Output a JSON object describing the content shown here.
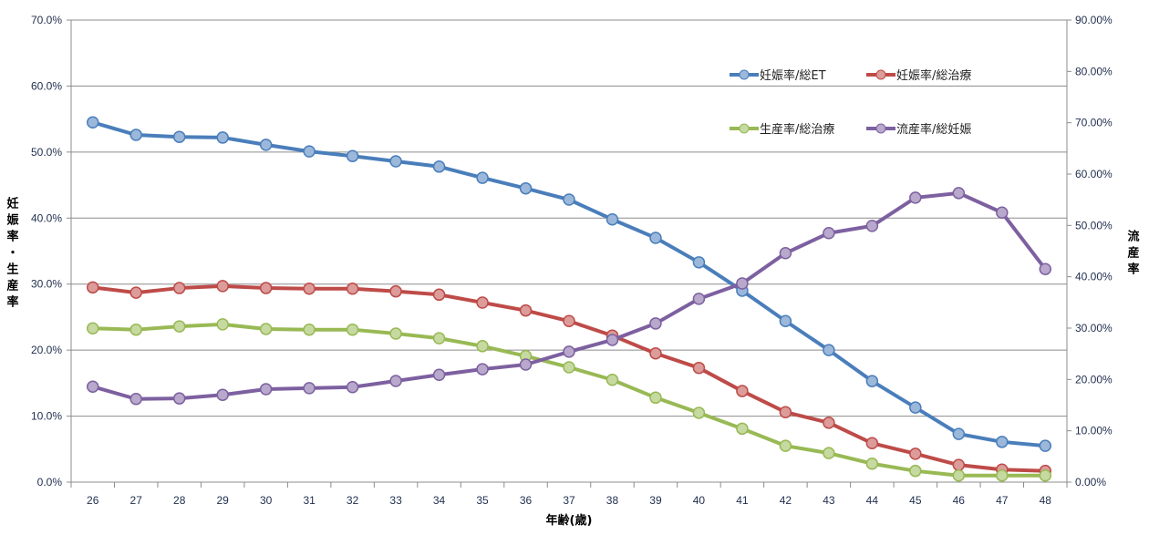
{
  "chart_data": {
    "type": "line",
    "xlabel": "年齢(歳)",
    "ylabel": "妊娠率・生産率",
    "y2label": "流産率",
    "categories": [
      26,
      27,
      28,
      29,
      30,
      31,
      32,
      33,
      34,
      35,
      36,
      37,
      38,
      39,
      40,
      41,
      42,
      43,
      44,
      45,
      46,
      47,
      48
    ],
    "ylim": [
      0,
      70
    ],
    "y2lim": [
      0,
      90
    ],
    "yticks": [
      "0.0%",
      "10.0%",
      "20.0%",
      "30.0%",
      "40.0%",
      "50.0%",
      "60.0%",
      "70.0%"
    ],
    "y2ticks": [
      "0.00%",
      "10.00%",
      "20.00%",
      "30.00%",
      "40.00%",
      "50.00%",
      "60.00%",
      "70.00%",
      "80.00%",
      "90.00%"
    ],
    "grid": true,
    "legend_position": "top-right",
    "series": [
      {
        "name": "妊娠率/総ET",
        "axis": "left",
        "color": "#4a7ebb",
        "values": [
          54.5,
          52.6,
          52.3,
          52.2,
          51.1,
          50.1,
          49.4,
          48.6,
          47.8,
          46.1,
          44.5,
          42.8,
          39.8,
          37.0,
          33.3,
          29.0,
          24.4,
          20.0,
          15.3,
          11.3,
          7.3,
          6.1,
          5.5
        ]
      },
      {
        "name": "妊娠率/総治療",
        "axis": "left",
        "color": "#be4b48",
        "values": [
          29.5,
          28.7,
          29.4,
          29.7,
          29.4,
          29.3,
          29.3,
          28.9,
          28.4,
          27.2,
          26.0,
          24.4,
          22.2,
          19.5,
          17.3,
          13.8,
          10.6,
          9.0,
          5.9,
          4.3,
          2.6,
          1.9,
          1.7
        ]
      },
      {
        "name": "生産率/総治療",
        "axis": "left",
        "color": "#98b954",
        "values": [
          23.3,
          23.1,
          23.6,
          23.9,
          23.2,
          23.1,
          23.1,
          22.5,
          21.8,
          20.6,
          19.1,
          17.4,
          15.5,
          12.8,
          10.5,
          8.1,
          5.5,
          4.4,
          2.8,
          1.7,
          1.0,
          1.0,
          1.0
        ]
      },
      {
        "name": "流産率/総妊娠",
        "axis": "right",
        "color": "#7d60a0",
        "values": [
          18.6,
          16.2,
          16.3,
          17.0,
          18.1,
          18.3,
          18.5,
          19.7,
          20.9,
          22.0,
          22.9,
          25.4,
          27.7,
          30.9,
          35.7,
          38.7,
          44.6,
          48.5,
          49.9,
          55.4,
          56.3,
          52.5,
          41.5
        ]
      }
    ]
  }
}
